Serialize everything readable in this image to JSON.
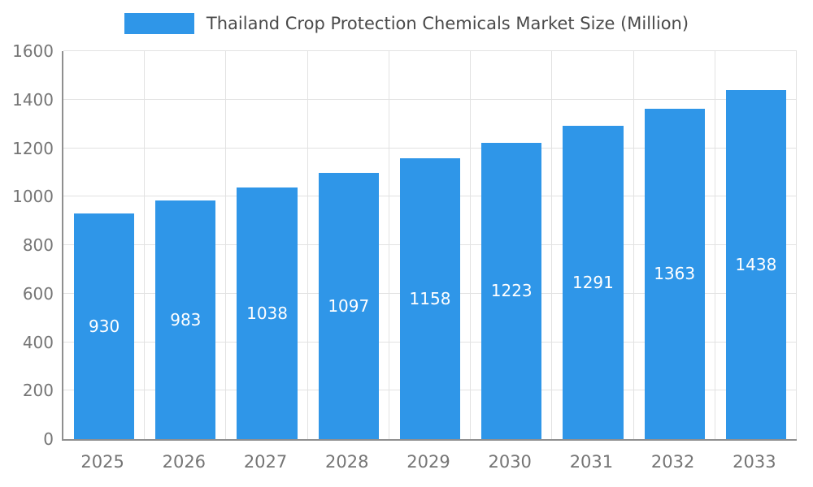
{
  "chart_data": {
    "type": "bar",
    "title": "Thailand Crop Protection Chemicals Market Size (Million)",
    "categories": [
      "2025",
      "2026",
      "2027",
      "2028",
      "2029",
      "2030",
      "2031",
      "2032",
      "2033"
    ],
    "values": [
      930,
      983,
      1038,
      1097,
      1158,
      1223,
      1291,
      1363,
      1438
    ],
    "xlabel": "",
    "ylabel": "",
    "ylim": [
      0,
      1600
    ],
    "ytick_interval": 200,
    "yticks": [
      0,
      200,
      400,
      600,
      800,
      1000,
      1200,
      1400,
      1600
    ],
    "grid": true,
    "legend_position": "top",
    "bar_color": "#2F96E8",
    "value_label_color": "#FFFFFF",
    "axis_text_color": "#757575",
    "title_color": "#4A4A4A"
  }
}
